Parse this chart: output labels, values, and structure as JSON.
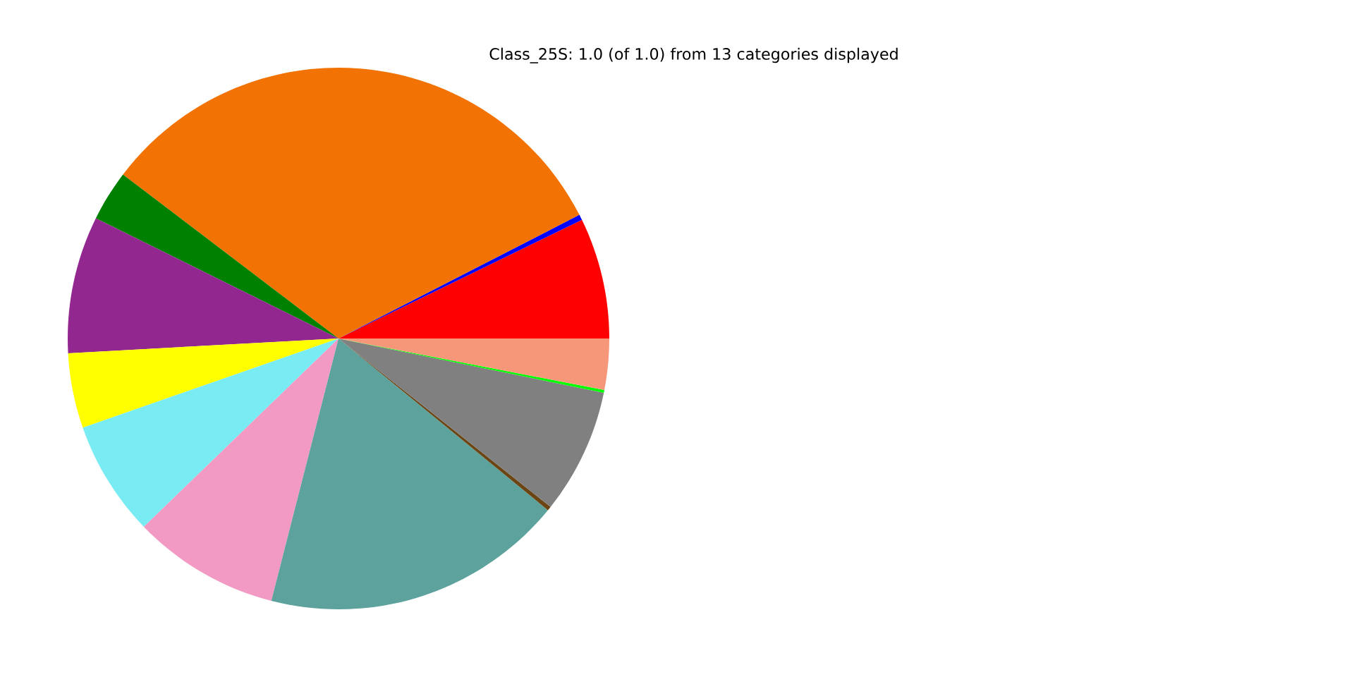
{
  "chart_data": {
    "type": "pie",
    "title": "Class_25S: 1.0 (of 1.0) from 13 categories displayed",
    "categories": [
      null,
      null,
      null,
      null,
      null,
      null,
      null,
      null,
      null,
      null,
      null,
      null,
      null
    ],
    "values": [
      7.22,
      0.33,
      32.1,
      3.03,
      8.19,
      4.47,
      6.89,
      8.78,
      18.06,
      0.25,
      7.47,
      0.17,
      3.04
    ],
    "colors": [
      "#ff0000",
      "#0000ff",
      "#f27304",
      "#008000",
      "#92278f",
      "#ffff00",
      "#79ecf3",
      "#f29ac3",
      "#5ea29e",
      "#6b4513",
      "#808080",
      "#00ff00",
      "#f7977a"
    ]
  }
}
